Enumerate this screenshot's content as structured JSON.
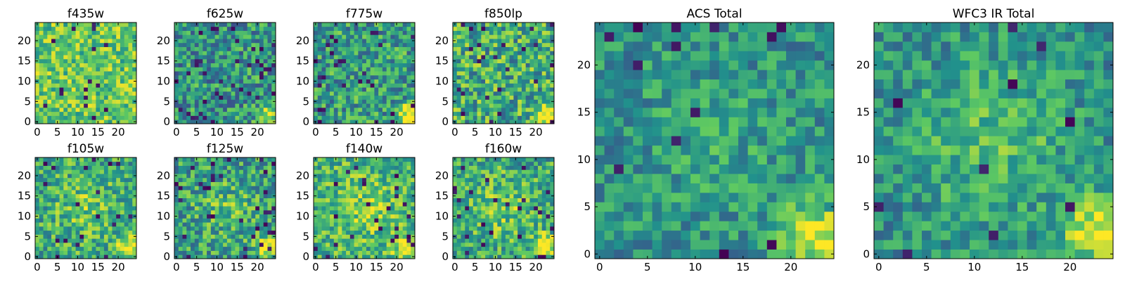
{
  "figure": {
    "background": "#ffffff",
    "colormap": "viridis",
    "colormap_stops": [
      "#440154",
      "#3b528b",
      "#21918c",
      "#5ec962",
      "#fde725"
    ]
  },
  "chart_data": [
    {
      "id": "f435w",
      "type": "heatmap",
      "title": "f435w",
      "grid": [
        25,
        25
      ],
      "xlim": [
        0,
        24
      ],
      "ylim": [
        0,
        24
      ],
      "xticks": [
        "0",
        "5",
        "10",
        "15",
        "20"
      ],
      "yticks": [
        "0",
        "5",
        "10",
        "15",
        "20"
      ],
      "seed": 11,
      "base": 0.74,
      "noise": 0.24,
      "dark_frac": 0.03,
      "hotspot": null,
      "blob": 0
    },
    {
      "id": "f625w",
      "type": "heatmap",
      "title": "f625w",
      "grid": [
        25,
        25
      ],
      "xlim": [
        0,
        24
      ],
      "ylim": [
        0,
        24
      ],
      "xticks": [
        "0",
        "5",
        "10",
        "15",
        "20"
      ],
      "yticks": [
        "0",
        "5",
        "10",
        "15",
        "20"
      ],
      "seed": 23,
      "base": 0.52,
      "noise": 0.28,
      "dark_frac": 0.05,
      "hotspot": {
        "x": 22.5,
        "y": 1.5,
        "r": 2.6,
        "amp": 0.5
      },
      "blob": 0
    },
    {
      "id": "f775w",
      "type": "heatmap",
      "title": "f775w",
      "grid": [
        25,
        25
      ],
      "xlim": [
        0,
        24
      ],
      "ylim": [
        0,
        24
      ],
      "xticks": [
        "0",
        "5",
        "10",
        "15",
        "20"
      ],
      "yticks": [
        "0",
        "5",
        "10",
        "15",
        "20"
      ],
      "seed": 37,
      "base": 0.55,
      "noise": 0.28,
      "dark_frac": 0.05,
      "hotspot": {
        "x": 22.5,
        "y": 1.5,
        "r": 2.6,
        "amp": 0.5
      },
      "blob": 0
    },
    {
      "id": "f850lp",
      "type": "heatmap",
      "title": "f850lp",
      "grid": [
        25,
        25
      ],
      "xlim": [
        0,
        24
      ],
      "ylim": [
        0,
        24
      ],
      "xticks": [
        "0",
        "5",
        "10",
        "15",
        "20"
      ],
      "yticks": [
        "0",
        "5",
        "10",
        "15",
        "20"
      ],
      "seed": 41,
      "base": 0.62,
      "noise": 0.3,
      "dark_frac": 0.05,
      "hotspot": {
        "x": 22.5,
        "y": 1.5,
        "r": 2.6,
        "amp": 0.5
      },
      "blob": 0
    },
    {
      "id": "f105w",
      "type": "heatmap",
      "title": "f105w",
      "grid": [
        25,
        25
      ],
      "xlim": [
        0,
        24
      ],
      "ylim": [
        0,
        24
      ],
      "xticks": [
        "0",
        "5",
        "10",
        "15",
        "20"
      ],
      "yticks": [
        "0",
        "5",
        "10",
        "15",
        "20"
      ],
      "seed": 53,
      "base": 0.6,
      "noise": 0.26,
      "dark_frac": 0.04,
      "hotspot": {
        "x": 22.5,
        "y": 2.5,
        "r": 3.0,
        "amp": 0.45
      },
      "blob": 0.15
    },
    {
      "id": "f125w",
      "type": "heatmap",
      "title": "f125w",
      "grid": [
        25,
        25
      ],
      "xlim": [
        0,
        24
      ],
      "ylim": [
        0,
        24
      ],
      "xticks": [
        "0",
        "5",
        "10",
        "15",
        "20"
      ],
      "yticks": [
        "0",
        "5",
        "10",
        "15",
        "20"
      ],
      "seed": 67,
      "base": 0.55,
      "noise": 0.27,
      "dark_frac": 0.05,
      "hotspot": {
        "x": 22.5,
        "y": 2.5,
        "r": 3.0,
        "amp": 0.45
      },
      "blob": 0.15
    },
    {
      "id": "f140w",
      "type": "heatmap",
      "title": "f140w",
      "grid": [
        25,
        25
      ],
      "xlim": [
        0,
        24
      ],
      "ylim": [
        0,
        24
      ],
      "xticks": [
        "0",
        "5",
        "10",
        "15",
        "20"
      ],
      "yticks": [
        "0",
        "5",
        "10",
        "15",
        "20"
      ],
      "seed": 79,
      "base": 0.64,
      "noise": 0.25,
      "dark_frac": 0.04,
      "hotspot": {
        "x": 22.5,
        "y": 2.5,
        "r": 3.0,
        "amp": 0.4
      },
      "blob": 0.15
    },
    {
      "id": "f160w",
      "type": "heatmap",
      "title": "f160w",
      "grid": [
        25,
        25
      ],
      "xlim": [
        0,
        24
      ],
      "ylim": [
        0,
        24
      ],
      "xticks": [
        "0",
        "5",
        "10",
        "15",
        "20"
      ],
      "yticks": [
        "0",
        "5",
        "10",
        "15",
        "20"
      ],
      "seed": 83,
      "base": 0.6,
      "noise": 0.26,
      "dark_frac": 0.05,
      "hotspot": {
        "x": 22.5,
        "y": 2.5,
        "r": 3.0,
        "amp": 0.45
      },
      "blob": 0.15
    },
    {
      "id": "acs-total",
      "type": "heatmap",
      "title": "ACS Total",
      "grid": [
        25,
        25
      ],
      "xlim": [
        0,
        24
      ],
      "ylim": [
        0,
        24
      ],
      "xticks": [
        "0",
        "5",
        "10",
        "15",
        "20"
      ],
      "yticks": [
        "0",
        "5",
        "10",
        "15",
        "20"
      ],
      "seed": 97,
      "base": 0.5,
      "noise": 0.2,
      "dark_frac": 0.03,
      "hotspot": {
        "x": 22.5,
        "y": 2.0,
        "r": 3.2,
        "amp": 0.5
      },
      "blob": 0.1
    },
    {
      "id": "wfc3-ir-total",
      "type": "heatmap",
      "title": "WFC3 IR Total",
      "grid": [
        25,
        25
      ],
      "xlim": [
        0,
        24
      ],
      "ylim": [
        0,
        24
      ],
      "xticks": [
        "0",
        "5",
        "10",
        "15",
        "20"
      ],
      "yticks": [
        "0",
        "5",
        "10",
        "15",
        "20"
      ],
      "seed": 103,
      "base": 0.5,
      "noise": 0.2,
      "dark_frac": 0.03,
      "hotspot": {
        "x": 22.5,
        "y": 2.5,
        "r": 3.2,
        "amp": 0.5
      },
      "blob": 0.2
    }
  ]
}
